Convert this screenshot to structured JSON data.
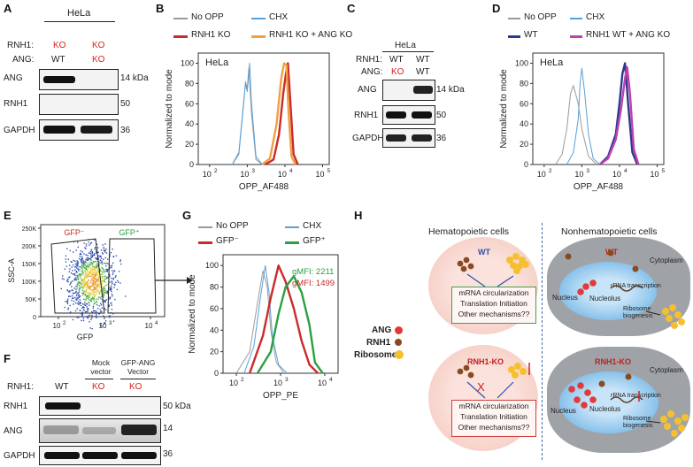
{
  "panels": {
    "A": {
      "letter": "A",
      "cell_line": "HeLa",
      "row_labels": [
        "RNH1:",
        "ANG:"
      ],
      "lanes": [
        {
          "rnh1": "KO",
          "ang": "WT"
        },
        {
          "rnh1": "KO",
          "ang": "KO"
        }
      ],
      "blots": [
        {
          "name": "ANG",
          "mw": "14 kDa"
        },
        {
          "name": "RNH1",
          "mw": "50"
        },
        {
          "name": "GAPDH",
          "mw": "36"
        }
      ]
    },
    "B": {
      "letter": "B",
      "legend": [
        "No OPP",
        "CHX",
        "RNH1 KO",
        "RNH1 KO + ANG KO"
      ],
      "inset": "HeLa",
      "ylabel": "Normalized to mode",
      "xlabel": "OPP_AF488",
      "yticks": [
        "0",
        "20",
        "40",
        "60",
        "80",
        "100"
      ],
      "xticks": [
        {
          "b": "10",
          "e": "2"
        },
        {
          "b": "10",
          "e": "3"
        },
        {
          "b": "10",
          "e": "4"
        },
        {
          "b": "10",
          "e": "5"
        }
      ],
      "colors": {
        "no_opp": "#9a9a9a",
        "chx": "#5aa0d8",
        "ko": "#cc2a2a",
        "ko_ang": "#f0a040"
      }
    },
    "C": {
      "letter": "C",
      "cell_line": "HeLa",
      "row_labels": [
        "RNH1:",
        "ANG:"
      ],
      "lanes": [
        {
          "rnh1": "WT",
          "ang": "KO"
        },
        {
          "rnh1": "WT",
          "ang": "WT"
        }
      ],
      "blots": [
        {
          "name": "ANG",
          "mw": "14 kDa"
        },
        {
          "name": "RNH1",
          "mw": "50"
        },
        {
          "name": "GAPDH",
          "mw": "36"
        }
      ]
    },
    "D": {
      "letter": "D",
      "legend": [
        "No OPP",
        "CHX",
        "WT",
        "RNH1 WT + ANG KO"
      ],
      "inset": "HeLa",
      "ylabel": "Normalized to mode",
      "xlabel": "OPP_AF488",
      "yticks": [
        "0",
        "20",
        "40",
        "60",
        "80",
        "100"
      ],
      "xticks": [
        {
          "b": "10",
          "e": "2"
        },
        {
          "b": "10",
          "e": "3"
        },
        {
          "b": "10",
          "e": "4"
        },
        {
          "b": "10",
          "e": "5"
        }
      ],
      "colors": {
        "no_opp": "#9a9a9a",
        "chx": "#5aa0d8",
        "wt": "#2a3a8c",
        "wt_ang": "#c040b0"
      }
    },
    "E": {
      "letter": "E",
      "gate_neg": "GFP⁻",
      "gate_pos": "GFP⁺",
      "ylabel": "SSC-A",
      "xlabel": "GFP",
      "yticks": [
        "0",
        "50K",
        "100K",
        "150K",
        "200K",
        "250K"
      ],
      "xticks": [
        {
          "b": "10",
          "e": "2"
        },
        {
          "b": "10",
          "e": "3"
        },
        {
          "b": "10",
          "e": "4"
        }
      ]
    },
    "F": {
      "letter": "F",
      "row_label": "RNH1:",
      "lane_headers": [
        "",
        "Mock vector",
        "GFP-ANG Vector"
      ],
      "lanes": [
        "WT",
        "KO",
        "KO"
      ],
      "blots": [
        {
          "name": "RNH1",
          "mw": "50 kDa"
        },
        {
          "name": "ANG",
          "mw": "14"
        },
        {
          "name": "GAPDH",
          "mw": "36"
        }
      ]
    },
    "G": {
      "letter": "G",
      "legend": [
        "No OPP",
        "CHX",
        "GFP⁻",
        "GFP⁺"
      ],
      "gmfi": [
        "gMFI: 2211",
        "gMFI: 1499"
      ],
      "ylabel": "Normalized to mode",
      "xlabel": "OPP_PE",
      "yticks": [
        "0",
        "20",
        "40",
        "60",
        "80",
        "100"
      ],
      "xticks": [
        {
          "b": "10",
          "e": "2"
        },
        {
          "b": "10",
          "e": "3"
        },
        {
          "b": "10",
          "e": "4"
        }
      ],
      "colors": {
        "no_opp": "#9a9a9a",
        "chx": "#5aa0d8",
        "neg": "#cc2a2a",
        "pos": "#2aa040"
      }
    },
    "H": {
      "letter": "H",
      "hema_title": "Hematopoietic cells",
      "nonhema_title": "Nonhematopoietic cells",
      "legend": [
        "ANG",
        "RNH1",
        "Ribosome"
      ],
      "wt": "WT",
      "ko": "RNH1-KO",
      "box_lines": [
        "mRNA circularization",
        "Translation Initiation",
        "Other mechanisms??"
      ],
      "x_mark": "X",
      "organelles": {
        "nucleus": "Nucleus",
        "nucleolus": "Nucleolus",
        "cytoplasm": "Cytoplasm",
        "rrna": "rRNA transcription",
        "ribo": "Ribosome biogenesis"
      }
    }
  },
  "chart_data": [
    {
      "type": "line",
      "title": "B: HeLa OPP_AF488",
      "xlabel": "OPP_AF488",
      "ylabel": "Normalized to mode",
      "xscale": "log10",
      "xlim": [
        50,
        150000
      ],
      "ylim": [
        0,
        110
      ],
      "series": [
        {
          "name": "No OPP",
          "x": [
            400,
            600,
            800,
            900,
            1000,
            1100,
            1300,
            1700,
            2500
          ],
          "y": [
            0,
            10,
            60,
            82,
            75,
            95,
            50,
            5,
            0
          ]
        },
        {
          "name": "CHX",
          "x": [
            400,
            600,
            800,
            900,
            1000,
            1150,
            1300,
            1700,
            2500
          ],
          "y": [
            0,
            12,
            62,
            80,
            72,
            100,
            60,
            8,
            0
          ]
        },
        {
          "name": "RNH1 KO",
          "x": [
            3000,
            5000,
            7000,
            9000,
            10500,
            12000,
            14000,
            17000,
            22000
          ],
          "y": [
            0,
            5,
            30,
            70,
            88,
            100,
            60,
            10,
            0
          ]
        },
        {
          "name": "RNH1 KO + ANG KO",
          "x": [
            2500,
            4000,
            6000,
            8000,
            9500,
            11000,
            12500,
            15000,
            19000
          ],
          "y": [
            0,
            6,
            40,
            85,
            100,
            98,
            50,
            8,
            0
          ]
        }
      ]
    },
    {
      "type": "line",
      "title": "D: HeLa OPP_AF488",
      "xlabel": "OPP_AF488",
      "ylabel": "Normalized to mode",
      "xscale": "log10",
      "xlim": [
        50,
        150000
      ],
      "ylim": [
        0,
        110
      ],
      "series": [
        {
          "name": "No OPP",
          "x": [
            200,
            300,
            400,
            500,
            600,
            800,
            1000,
            1500,
            2500
          ],
          "y": [
            0,
            10,
            35,
            70,
            78,
            60,
            35,
            8,
            0
          ]
        },
        {
          "name": "CHX",
          "x": [
            400,
            600,
            800,
            900,
            1000,
            1200,
            1500,
            2000,
            3000
          ],
          "y": [
            0,
            12,
            45,
            80,
            95,
            70,
            30,
            6,
            0
          ]
        },
        {
          "name": "WT",
          "x": [
            3000,
            5000,
            8000,
            10000,
            12000,
            14000,
            17000,
            22000,
            30000
          ],
          "y": [
            0,
            8,
            30,
            60,
            90,
            100,
            60,
            12,
            0
          ]
        },
        {
          "name": "RNH1 WT + ANG KO",
          "x": [
            3000,
            5000,
            8000,
            11000,
            14000,
            16000,
            19000,
            24000,
            32000
          ],
          "y": [
            0,
            6,
            25,
            55,
            85,
            96,
            70,
            15,
            0
          ]
        }
      ]
    },
    {
      "type": "line",
      "title": "G: OPP_PE",
      "xlabel": "OPP_PE",
      "ylabel": "Normalized to mode",
      "xscale": "log10",
      "xlim": [
        50,
        20000
      ],
      "ylim": [
        0,
        110
      ],
      "series": [
        {
          "name": "No OPP",
          "x": [
            100,
            200,
            300,
            400,
            500,
            600,
            800,
            1200
          ],
          "y": [
            0,
            20,
            65,
            95,
            80,
            40,
            10,
            0
          ]
        },
        {
          "name": "CHX",
          "x": [
            150,
            250,
            350,
            450,
            550,
            650,
            900,
            1400
          ],
          "y": [
            0,
            25,
            70,
            100,
            75,
            35,
            8,
            0
          ]
        },
        {
          "name": "GFP⁻",
          "x": [
            200,
            400,
            600,
            900,
            1300,
            2000,
            3000,
            4500,
            7000
          ],
          "y": [
            0,
            35,
            70,
            100,
            85,
            60,
            30,
            8,
            0
          ]
        },
        {
          "name": "GFP⁺",
          "x": [
            300,
            600,
            900,
            1300,
            2000,
            3000,
            4500,
            6000,
            9000
          ],
          "y": [
            0,
            20,
            55,
            80,
            90,
            75,
            45,
            10,
            0
          ]
        }
      ]
    }
  ]
}
